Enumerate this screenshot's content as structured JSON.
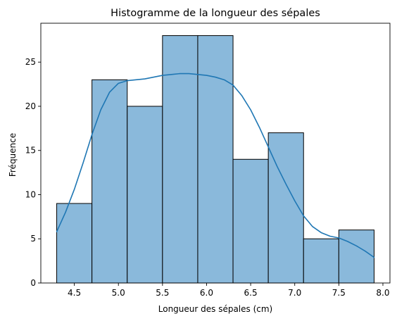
{
  "chart_data": {
    "type": "bar",
    "title": "Histogramme de la longueur des sépales",
    "xlabel": "Longueur des sépales (cm)",
    "ylabel": "Fréquence",
    "xlim": [
      4.12,
      8.08
    ],
    "ylim": [
      0,
      29.4
    ],
    "xticks": [
      4.5,
      5.0,
      5.5,
      6.0,
      6.5,
      7.0,
      7.5,
      8.0
    ],
    "xtick_labels": [
      "4.5",
      "5.0",
      "5.5",
      "6.0",
      "6.5",
      "7.0",
      "7.5",
      "8.0"
    ],
    "yticks": [
      0,
      5,
      10,
      15,
      20,
      25
    ],
    "ytick_labels": [
      "0",
      "5",
      "10",
      "15",
      "20",
      "25"
    ],
    "bins": [
      {
        "x0": 4.3,
        "x1": 4.7,
        "count": 9
      },
      {
        "x0": 4.7,
        "x1": 5.1,
        "count": 23
      },
      {
        "x0": 5.1,
        "x1": 5.5,
        "count": 20
      },
      {
        "x0": 5.5,
        "x1": 5.9,
        "count": 28
      },
      {
        "x0": 5.9,
        "x1": 6.3,
        "count": 28
      },
      {
        "x0": 6.3,
        "x1": 6.7,
        "count": 14
      },
      {
        "x0": 6.7,
        "x1": 7.1,
        "count": 17
      },
      {
        "x0": 7.1,
        "x1": 7.5,
        "count": 5
      },
      {
        "x0": 7.5,
        "x1": 7.9,
        "count": 6
      }
    ],
    "kde": {
      "x": [
        4.3,
        4.4,
        4.5,
        4.6,
        4.7,
        4.8,
        4.9,
        5.0,
        5.1,
        5.2,
        5.3,
        5.4,
        5.5,
        5.6,
        5.7,
        5.8,
        5.9,
        6.0,
        6.1,
        6.2,
        6.3,
        6.4,
        6.5,
        6.6,
        6.7,
        6.8,
        6.9,
        7.0,
        7.1,
        7.2,
        7.3,
        7.4,
        7.5,
        7.6,
        7.7,
        7.8,
        7.9
      ],
      "y": [
        5.8,
        8.0,
        10.6,
        13.6,
        16.8,
        19.6,
        21.6,
        22.6,
        22.9,
        23.0,
        23.1,
        23.3,
        23.5,
        23.6,
        23.7,
        23.7,
        23.6,
        23.5,
        23.3,
        23.0,
        22.4,
        21.2,
        19.6,
        17.6,
        15.4,
        13.2,
        11.2,
        9.3,
        7.6,
        6.4,
        5.7,
        5.3,
        5.1,
        4.7,
        4.2,
        3.6,
        2.9
      ]
    },
    "colors": {
      "bar_fill": "#8ab9db",
      "bar_edge": "#000000",
      "kde_line": "#1f77b4"
    },
    "grid": false,
    "legend": "none"
  }
}
